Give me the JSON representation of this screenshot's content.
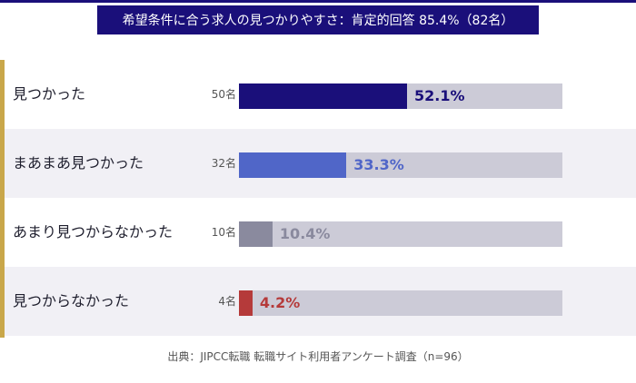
{
  "chart_data": {
    "type": "bar",
    "orientation": "horizontal",
    "title": "希望条件に合う求人の見つかりやすさ：肯定的回答 85.4%（82名）",
    "categories": [
      "見つかった",
      "まあまあ見つかった",
      "あまり見つからなかった",
      "見つからなかった"
    ],
    "counts": [
      "50名",
      "32名",
      "10名",
      "4名"
    ],
    "values": [
      52.1,
      33.3,
      10.4,
      4.2
    ],
    "value_labels": [
      "52.1%",
      "33.3%",
      "10.4%",
      "4.2%"
    ],
    "colors": [
      "#1a0f7a",
      "#5066c8",
      "#8a8a9e",
      "#b53a3a"
    ],
    "xlim": [
      0,
      100
    ],
    "source": "出典：JIPCC転職 転職サイト利用者アンケート調査（n=96）"
  }
}
